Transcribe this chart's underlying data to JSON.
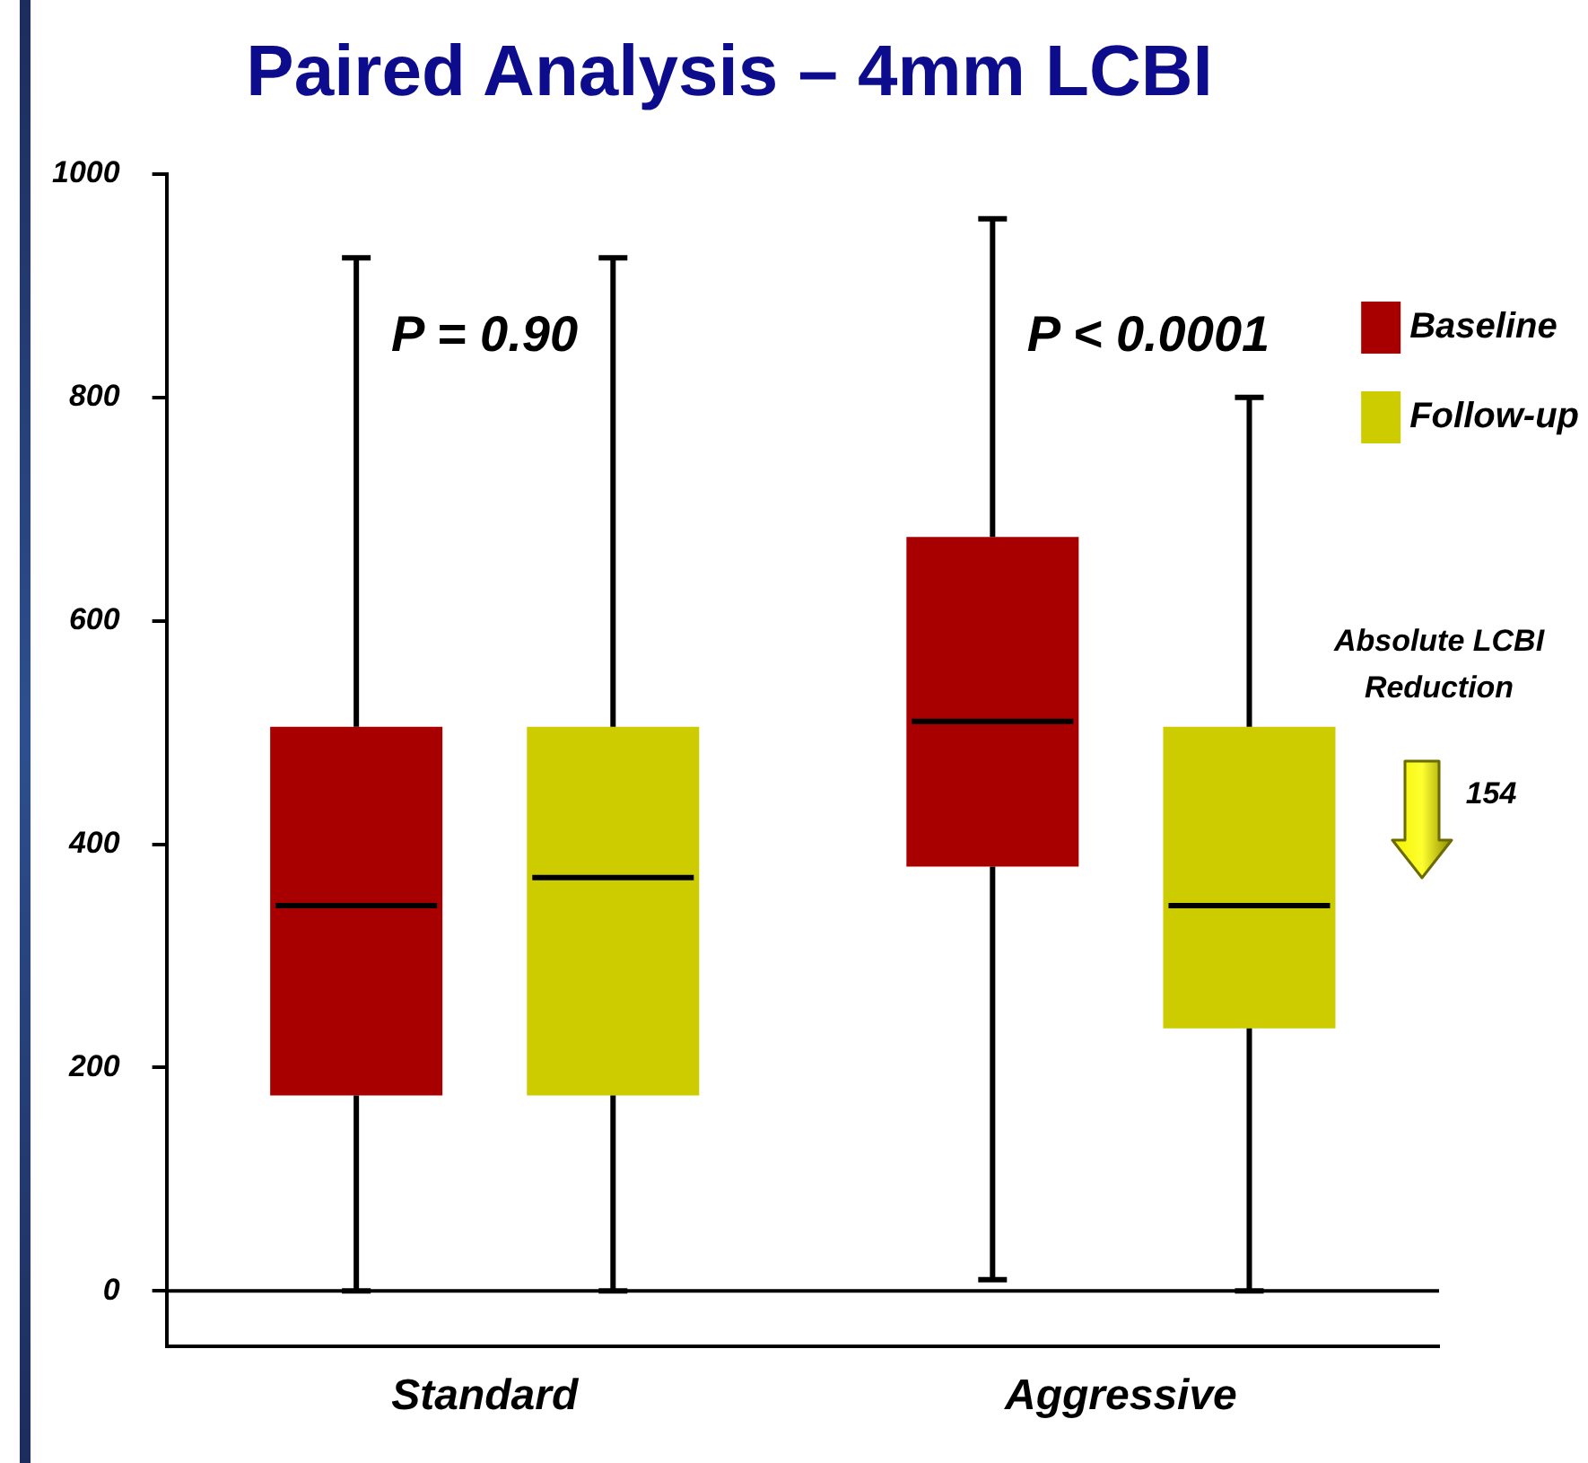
{
  "chart_data": {
    "type": "box",
    "title": "Paired Analysis – 4mm LCBI",
    "categories": [
      "Standard",
      "Aggressive"
    ],
    "series": [
      {
        "name": "Baseline",
        "color": "#a80000",
        "boxes": [
          {
            "low": 0,
            "q1": 175,
            "median": 345,
            "q3": 505,
            "high": 925
          },
          {
            "low": 10,
            "q1": 380,
            "median": 510,
            "q3": 675,
            "high": 960
          }
        ]
      },
      {
        "name": "Follow-up",
        "color": "#cccc00",
        "boxes": [
          {
            "low": 0,
            "q1": 175,
            "median": 370,
            "q3": 505,
            "high": 925
          },
          {
            "low": 0,
            "q1": 235,
            "median": 345,
            "q3": 505,
            "high": 800
          }
        ]
      }
    ],
    "ylim": [
      -50,
      1000
    ],
    "yticks": [
      0,
      200,
      400,
      600,
      800,
      1000
    ],
    "grid": false,
    "legend": "top right",
    "ref_lines": [
      {
        "axis": "y",
        "value": 0,
        "color": "#000000"
      }
    ],
    "annotations": [
      "P = 0.90",
      "P < 0.0001",
      "Absolute LCBI Reduction",
      "154"
    ]
  }
}
